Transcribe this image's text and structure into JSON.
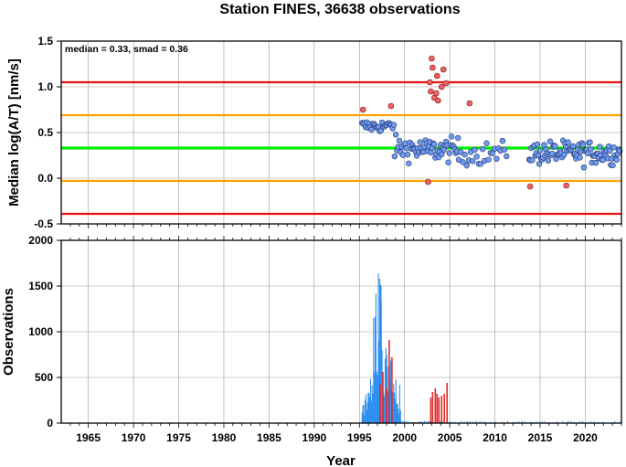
{
  "chart_data": [
    {
      "type": "scatter",
      "title": "Station FINES, 36638 observations",
      "xlabel": "",
      "ylabel": "Median log(A/T) [nm/s]",
      "xlim": [
        1962,
        2024
      ],
      "ylim": [
        -0.5,
        1.5
      ],
      "yticks": [
        "-0.5",
        "0.0",
        "0.5",
        "1.0",
        "1.5"
      ],
      "grid": true,
      "annotation": "median = 0.33, smad = 0.36",
      "reference_lines": [
        {
          "kind": "median",
          "y": 0.33,
          "color": "#00ee00"
        },
        {
          "kind": "upper-1",
          "y": 0.69,
          "color": "#ffa500"
        },
        {
          "kind": "lower-1",
          "y": -0.03,
          "color": "#ffa500"
        },
        {
          "kind": "upper-2",
          "y": 1.05,
          "color": "#ee1111"
        },
        {
          "kind": "lower-2",
          "y": -0.39,
          "color": "#ee1111"
        }
      ],
      "outlier_points": [
        [
          1995.4,
          0.75
        ],
        [
          1998.5,
          0.79
        ],
        [
          2002.6,
          -0.04
        ],
        [
          2002.8,
          1.05
        ],
        [
          2002.9,
          0.95
        ],
        [
          2003.0,
          1.31
        ],
        [
          2003.1,
          1.21
        ],
        [
          2003.3,
          0.88
        ],
        [
          2003.5,
          0.93
        ],
        [
          2003.6,
          1.12
        ],
        [
          2003.7,
          0.85
        ],
        [
          2004.1,
          1.0
        ],
        [
          2004.3,
          1.19
        ],
        [
          2004.6,
          1.04
        ],
        [
          2007.2,
          0.82
        ],
        [
          2013.9,
          -0.09
        ],
        [
          2017.9,
          -0.08
        ]
      ],
      "colors": {
        "normal": "#6e9af0",
        "outlier": "#f06060",
        "outline": "#24356e"
      }
    },
    {
      "type": "bar",
      "title": "",
      "xlabel": "Year",
      "ylabel": "Observations",
      "xlim": [
        1962,
        2024
      ],
      "ylim": [
        0,
        2000
      ],
      "xticks": [
        "1965",
        "1970",
        "1975",
        "1980",
        "1985",
        "1990",
        "1995",
        "2000",
        "2005",
        "2010",
        "2015",
        "2020"
      ],
      "yticks": [
        "0",
        "500",
        "1000",
        "1500",
        "2000"
      ],
      "grid": true,
      "red_bars": [
        [
          1997.3,
          420
        ],
        [
          1997.6,
          560
        ],
        [
          1998.0,
          380
        ],
        [
          1998.3,
          910
        ],
        [
          1998.6,
          720
        ],
        [
          2002.9,
          280
        ],
        [
          2003.1,
          340
        ],
        [
          2003.4,
          380
        ],
        [
          2003.6,
          320
        ],
        [
          2003.8,
          280
        ],
        [
          2004.1,
          300
        ],
        [
          2004.4,
          320
        ],
        [
          2004.7,
          440
        ]
      ],
      "colors": {
        "blue": "#2f8fef",
        "red": "#e52a2a"
      }
    }
  ]
}
